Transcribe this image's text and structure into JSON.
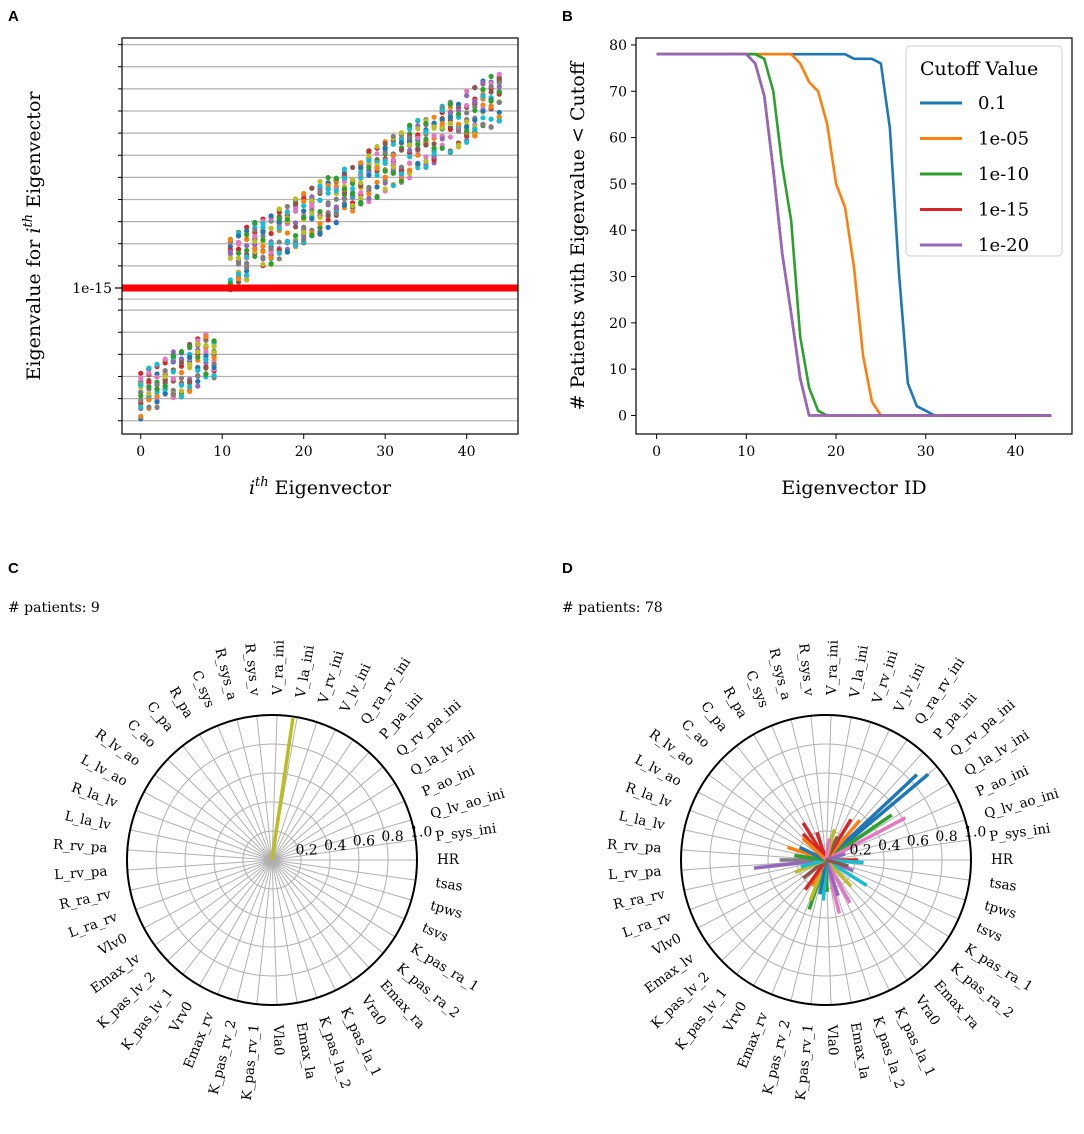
{
  "panel_labels": [
    "A",
    "B",
    "C",
    "D"
  ],
  "colors": {
    "tab": [
      "#1f77b4",
      "#ff7f0e",
      "#2ca02c",
      "#d62728",
      "#9467bd",
      "#8c564b",
      "#e377c2",
      "#7f7f7f",
      "#bcbd22",
      "#17becf"
    ],
    "threshold": "#ff0000",
    "grid": "#b0b0b0",
    "yellow_line": "#bcbd22"
  },
  "chart_data": [
    {
      "panel": "A",
      "type": "scatter",
      "title": "",
      "xlabel": "i^th Eigenvector",
      "xlabel_base": "i",
      "xlabel_sup": "th",
      "xlabel_rest": " Eigenvector",
      "ylabel": "Eigenvalue for i^th Eigenvector",
      "ylabel_pre": "Eigenvalue for ",
      "ylabel_var": "i",
      "ylabel_sup": "th",
      "ylabel_post": " Eigenvector",
      "xlim": [
        -2.3,
        46.3
      ],
      "xticks": [
        0,
        10,
        20,
        30,
        40
      ],
      "y_scale": "log",
      "ylim_log10": [
        -21.6,
        -3.7
      ],
      "ytick_label": "1e-15",
      "ytick_value_log10": -15,
      "threshold_log10": -15,
      "minor_gridlines_log10": [
        -21,
        -20,
        -19,
        -18,
        -17,
        -16,
        -15.5,
        -14,
        -13,
        -12,
        -11,
        -10,
        -9,
        -8,
        -7,
        -6,
        -5,
        -4
      ],
      "low_group": {
        "x_range": [
          0,
          9
        ],
        "log10_start": -19.8,
        "log10_slope": 0.2,
        "spread": 1.4
      },
      "high_group": {
        "x_range": [
          11,
          44
        ],
        "log10_start": -13.9,
        "log10_slope": 0.23,
        "spread": 1.5
      },
      "series_count": 10
    },
    {
      "panel": "B",
      "type": "line",
      "title": "",
      "xlabel": "Eigenvector ID",
      "ylabel": "# Patients with Eigenvalue < Cutoff",
      "xlim": [
        -2.3,
        46.3
      ],
      "ylim": [
        -4,
        81.5
      ],
      "xticks": [
        0,
        10,
        20,
        30,
        40
      ],
      "yticks": [
        0,
        10,
        20,
        30,
        40,
        50,
        60,
        70,
        80
      ],
      "legend_title": "Cutoff Value",
      "legend_position": "top-right",
      "series": [
        {
          "name": "0.1",
          "color": "#1f77b4",
          "points": [
            [
              0,
              78
            ],
            [
              21,
              78
            ],
            [
              22,
              77
            ],
            [
              23,
              77
            ],
            [
              24,
              77
            ],
            [
              25,
              76
            ],
            [
              26,
              62
            ],
            [
              27,
              31
            ],
            [
              28,
              7
            ],
            [
              29,
              2
            ],
            [
              30,
              1
            ],
            [
              31,
              0
            ],
            [
              44,
              0
            ]
          ]
        },
        {
          "name": "1e-05",
          "color": "#ff7f0e",
          "points": [
            [
              0,
              78
            ],
            [
              14,
              78
            ],
            [
              15,
              78
            ],
            [
              16,
              76
            ],
            [
              17,
              72
            ],
            [
              18,
              70
            ],
            [
              19,
              63
            ],
            [
              20,
              50
            ],
            [
              21,
              45
            ],
            [
              22,
              32
            ],
            [
              23,
              13
            ],
            [
              24,
              3
            ],
            [
              25,
              0
            ],
            [
              44,
              0
            ]
          ]
        },
        {
          "name": "1e-10",
          "color": "#2ca02c",
          "points": [
            [
              0,
              78
            ],
            [
              11,
              78
            ],
            [
              12,
              77
            ],
            [
              13,
              70
            ],
            [
              14,
              54
            ],
            [
              15,
              42
            ],
            [
              16,
              17
            ],
            [
              17,
              6
            ],
            [
              18,
              1
            ],
            [
              19,
              0
            ],
            [
              44,
              0
            ]
          ]
        },
        {
          "name": "1e-15",
          "color": "#d62728",
          "points": [
            [
              0,
              78
            ],
            [
              10,
              78
            ],
            [
              11,
              76
            ],
            [
              12,
              69
            ],
            [
              13,
              53
            ],
            [
              14,
              35
            ],
            [
              15,
              22
            ],
            [
              16,
              8
            ],
            [
              17,
              0
            ],
            [
              44,
              0
            ]
          ]
        },
        {
          "name": "1e-20",
          "color": "#9467bd",
          "points": [
            [
              0,
              78
            ],
            [
              10,
              78
            ],
            [
              11,
              76
            ],
            [
              12,
              69
            ],
            [
              13,
              53
            ],
            [
              14,
              35
            ],
            [
              15,
              22
            ],
            [
              16,
              8
            ],
            [
              17,
              0
            ],
            [
              44,
              0
            ]
          ]
        }
      ]
    },
    {
      "panel": "C",
      "type": "polar",
      "annotation": "# patients: 9",
      "rticks": [
        "0.2",
        "0.4",
        "0.6",
        "0.8",
        "1.0"
      ],
      "rmax": 1.0,
      "categories": [
        "HR",
        "P_sys_ini",
        "Q_lv_ao_ini",
        "P_ao_ini",
        "Q_la_lv_ini",
        "Q_rv_pa_ini",
        "P_pa_ini",
        "Q_ra_rv_ini",
        "V_lv_ini",
        "V_rv_ini",
        "V_la_ini",
        "V_ra_ini",
        "R_sys_v",
        "R_sys_a",
        "C_sys",
        "R_pa",
        "C_pa",
        "C_ao",
        "R_lv_ao",
        "L_lv_ao",
        "R_la_lv",
        "L_la_lv",
        "R_rv_pa",
        "L_rv_pa",
        "R_ra_rv",
        "L_ra_rv",
        "Vlv0",
        "Emax_lv",
        "K_pas_lv_2",
        "K_pas_lv_1",
        "Vrv0",
        "Emax_rv",
        "K_pas_rv_2",
        "K_pas_rv_1",
        "Vla0",
        "Emax_la",
        "K_pas_la_2",
        "K_pas_la_1",
        "Vra0",
        "Emax_ra",
        "K_pas_ra_2",
        "K_pas_ra_1",
        "tsvs",
        "tpws",
        "tsas"
      ],
      "vectors": [
        {
          "category": "V_la_ini",
          "offset": 0.2,
          "magnitude": 0.99,
          "color": "#bcbd22"
        }
      ]
    },
    {
      "panel": "D",
      "type": "polar",
      "annotation": "# patients: 78",
      "rticks": [
        "0.2",
        "0.4",
        "0.6",
        "0.8",
        "1.0"
      ],
      "rmax": 1.0,
      "categories": [
        "HR",
        "P_sys_ini",
        "Q_lv_ao_ini",
        "P_ao_ini",
        "Q_la_lv_ini",
        "Q_rv_pa_ini",
        "P_pa_ini",
        "Q_ra_rv_ini",
        "V_lv_ini",
        "V_rv_ini",
        "V_la_ini",
        "V_ra_ini",
        "R_sys_v",
        "R_sys_a",
        "C_sys",
        "R_pa",
        "C_pa",
        "C_ao",
        "R_lv_ao",
        "L_lv_ao",
        "R_la_lv",
        "L_la_lv",
        "R_rv_pa",
        "L_rv_pa",
        "R_ra_rv",
        "L_ra_rv",
        "Vlv0",
        "Emax_lv",
        "K_pas_lv_2",
        "K_pas_lv_1",
        "Vrv0",
        "Emax_rv",
        "K_pas_rv_2",
        "K_pas_rv_1",
        "Vla0",
        "Emax_la",
        "K_pas_la_2",
        "K_pas_la_1",
        "Vra0",
        "Emax_ra",
        "K_pas_ra_2",
        "K_pas_ra_1",
        "tsvs",
        "tpws",
        "tsas"
      ],
      "vectors": [
        {
          "category": "Q_rv_pa_ini",
          "offset": 0,
          "magnitude": 0.92,
          "color": "#1f77b4"
        },
        {
          "category": "Q_rv_pa_ini",
          "offset": 0.4,
          "magnitude": 0.86,
          "color": "#1f77b4"
        },
        {
          "category": "Q_la_lv_ini",
          "offset": 0.3,
          "magnitude": 0.55,
          "color": "#2ca02c"
        },
        {
          "category": "P_ao_ini",
          "offset": 0.5,
          "magnitude": 0.62,
          "color": "#e377c2"
        },
        {
          "category": "P_pa_ini",
          "offset": 0.2,
          "magnitude": 0.36,
          "color": "#ff7f0e"
        },
        {
          "category": "Q_ra_rv_ini",
          "offset": 0.3,
          "magnitude": 0.33,
          "color": "#d62728"
        },
        {
          "category": "V_lv_ini",
          "offset": 0,
          "magnitude": 0.18,
          "color": "#8c564b"
        },
        {
          "category": "HR",
          "offset": 0,
          "magnitude": 0.22,
          "color": "#d62728"
        },
        {
          "category": "tsas",
          "offset": 0.5,
          "magnitude": 0.26,
          "color": "#17becf"
        },
        {
          "category": "tsvs",
          "offset": 0.3,
          "magnitude": 0.2,
          "color": "#9467bd"
        },
        {
          "category": "K_pas_ra_1",
          "offset": 0,
          "magnitude": 0.33,
          "color": "#17becf"
        },
        {
          "category": "Emax_ra",
          "offset": 0.2,
          "magnitude": 0.25,
          "color": "#bcbd22"
        },
        {
          "category": "K_pas_la_1",
          "offset": 0.4,
          "magnitude": 0.34,
          "color": "#e377c2"
        },
        {
          "category": "Emax_la",
          "offset": 0.5,
          "magnitude": 0.38,
          "color": "#e377c2"
        },
        {
          "category": "K_pas_la_2",
          "offset": 0.1,
          "magnitude": 0.26,
          "color": "#9467bd"
        },
        {
          "category": "Vla0",
          "offset": 0,
          "magnitude": 0.22,
          "color": "#2ca02c"
        },
        {
          "category": "K_pas_rv_1",
          "offset": 0.3,
          "magnitude": 0.28,
          "color": "#17becf"
        },
        {
          "category": "Emax_rv",
          "offset": 0.4,
          "magnitude": 0.36,
          "color": "#2ca02c"
        },
        {
          "category": "Emax_rv",
          "offset": 0.1,
          "magnitude": 0.3,
          "color": "#bcbd22"
        },
        {
          "category": "K_pas_rv_2",
          "offset": 0.5,
          "magnitude": 0.24,
          "color": "#1f77b4"
        },
        {
          "category": "Vrv0",
          "offset": 0.2,
          "magnitude": 0.2,
          "color": "#ff7f0e"
        },
        {
          "category": "K_pas_lv_1",
          "offset": 0.4,
          "magnitude": 0.25,
          "color": "#d62728"
        },
        {
          "category": "Emax_lv",
          "offset": 0.3,
          "magnitude": 0.2,
          "color": "#8c564b"
        },
        {
          "category": "L_rv_pa",
          "offset": 0.3,
          "magnitude": 0.5,
          "color": "#9467bd"
        },
        {
          "category": "R_rv_pa",
          "offset": 0.5,
          "magnitude": 0.32,
          "color": "#7f7f7f"
        },
        {
          "category": "L_ra_rv",
          "offset": 0.2,
          "magnitude": 0.23,
          "color": "#bcbd22"
        },
        {
          "category": "R_ra_rv",
          "offset": 0.4,
          "magnitude": 0.18,
          "color": "#17becf"
        },
        {
          "category": "R_la_lv",
          "offset": 0.2,
          "magnitude": 0.28,
          "color": "#ff7f0e"
        },
        {
          "category": "L_la_lv",
          "offset": 0.5,
          "magnitude": 0.22,
          "color": "#2ca02c"
        },
        {
          "category": "L_lv_ao",
          "offset": 0.3,
          "magnitude": 0.2,
          "color": "#1f77b4"
        },
        {
          "category": "R_sys_a",
          "offset": 0.5,
          "magnitude": 0.2,
          "color": "#d62728"
        },
        {
          "category": "R_pa",
          "offset": 0.2,
          "magnitude": 0.3,
          "color": "#d62728"
        },
        {
          "category": "C_pa",
          "offset": 0.4,
          "magnitude": 0.24,
          "color": "#d62728"
        },
        {
          "category": "C_ao",
          "offset": 0.1,
          "magnitude": 0.22,
          "color": "#ff7f0e"
        },
        {
          "category": "V_rv_ini",
          "offset": 0.3,
          "magnitude": 0.22,
          "color": "#bcbd22"
        },
        {
          "category": "V_la_ini",
          "offset": 0.1,
          "magnitude": 0.15,
          "color": "#e377c2"
        },
        {
          "category": "Q_lv_ao_ini",
          "offset": 0.2,
          "magnitude": 0.14,
          "color": "#9467bd"
        },
        {
          "category": "tpws",
          "offset": 0.1,
          "magnitude": 0.16,
          "color": "#8c564b"
        }
      ]
    }
  ]
}
